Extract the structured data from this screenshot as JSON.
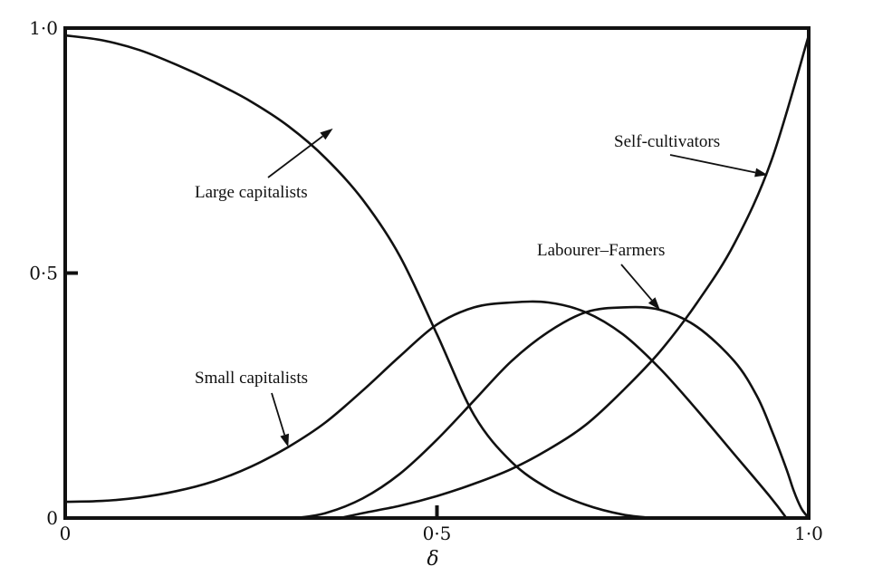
{
  "chart_data": {
    "type": "line",
    "xlabel": "δ",
    "ylabel": "",
    "xlim": [
      0,
      1
    ],
    "ylim": [
      0,
      1
    ],
    "grid": false,
    "x_ticks": [
      {
        "value": 0,
        "label": "0"
      },
      {
        "value": 0.5,
        "label": "0·5"
      },
      {
        "value": 1,
        "label": "1·0"
      }
    ],
    "y_ticks": [
      {
        "value": 0,
        "label": "0"
      },
      {
        "value": 0.5,
        "label": "0·5"
      },
      {
        "value": 1,
        "label": "1·0"
      }
    ],
    "series": [
      {
        "name": "Large capitalists",
        "x": [
          0,
          0.05,
          0.1,
          0.15,
          0.2,
          0.25,
          0.3,
          0.35,
          0.4,
          0.45,
          0.5,
          0.55,
          0.6,
          0.65,
          0.7,
          0.75,
          0.79
        ],
        "y": [
          0.985,
          0.975,
          0.955,
          0.925,
          0.89,
          0.85,
          0.8,
          0.735,
          0.65,
          0.535,
          0.375,
          0.21,
          0.115,
          0.06,
          0.027,
          0.007,
          0
        ]
      },
      {
        "name": "Small capitalists",
        "x": [
          0,
          0.05,
          0.1,
          0.15,
          0.2,
          0.25,
          0.3,
          0.35,
          0.4,
          0.45,
          0.5,
          0.55,
          0.6,
          0.65,
          0.7,
          0.75,
          0.8,
          0.85,
          0.9,
          0.95,
          0.97
        ],
        "y": [
          0.033,
          0.035,
          0.042,
          0.055,
          0.075,
          0.105,
          0.145,
          0.195,
          0.26,
          0.33,
          0.395,
          0.43,
          0.44,
          0.44,
          0.42,
          0.375,
          0.305,
          0.22,
          0.13,
          0.04,
          0
        ]
      },
      {
        "name": "Labourer–Farmers",
        "x": [
          0.31,
          0.35,
          0.4,
          0.45,
          0.5,
          0.55,
          0.6,
          0.65,
          0.7,
          0.75,
          0.8,
          0.85,
          0.9,
          0.93,
          0.95,
          0.97,
          0.98,
          0.99,
          1.0
        ],
        "y": [
          0,
          0.01,
          0.04,
          0.09,
          0.16,
          0.24,
          0.32,
          0.38,
          0.42,
          0.43,
          0.425,
          0.39,
          0.32,
          0.25,
          0.18,
          0.1,
          0.055,
          0.02,
          0
        ]
      },
      {
        "name": "Self-cultivators",
        "x": [
          0.37,
          0.4,
          0.45,
          0.5,
          0.55,
          0.6,
          0.65,
          0.7,
          0.75,
          0.8,
          0.85,
          0.9,
          0.95,
          1.0
        ],
        "y": [
          0,
          0.01,
          0.025,
          0.045,
          0.07,
          0.1,
          0.14,
          0.19,
          0.26,
          0.34,
          0.44,
          0.56,
          0.73,
          0.985
        ]
      }
    ],
    "annotations": [
      {
        "text": "Large capitalists",
        "series": "Large capitalists",
        "point": [
          0.36,
          0.795
        ]
      },
      {
        "text": "Small capitalists",
        "series": "Small capitalists",
        "point": [
          0.3,
          0.145
        ]
      },
      {
        "text": "Labourer–Farmers",
        "series": "Labourer–Farmers",
        "point": [
          0.8,
          0.425
        ]
      },
      {
        "text": "Self-cultivators",
        "series": "Self-cultivators",
        "point": [
          0.945,
          0.7
        ]
      }
    ]
  }
}
